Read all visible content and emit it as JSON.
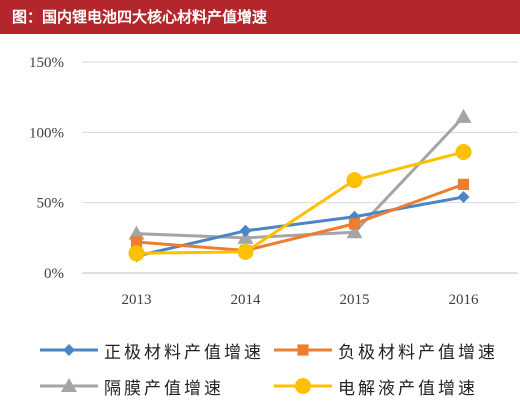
{
  "header": {
    "title": "图：国内锂电池四大核心材料产值增速"
  },
  "chart_data": {
    "type": "line",
    "title": "图：国内锂电池四大核心材料产值增速",
    "categories": [
      "2013",
      "2014",
      "2015",
      "2016"
    ],
    "yticks": [
      "0%",
      "50%",
      "100%",
      "150%"
    ],
    "ylim": [
      0,
      150
    ],
    "grid": true,
    "legend_position": "bottom",
    "series": [
      {
        "name": "正极材料产值增速",
        "values": [
          12,
          30,
          40,
          54
        ],
        "color": "#4a86c6",
        "marker": "diamond"
      },
      {
        "name": "负极材料产值增速",
        "values": [
          22,
          16,
          35,
          63
        ],
        "color": "#ed7d31",
        "marker": "square"
      },
      {
        "name": "隔膜产值增速",
        "values": [
          28,
          25,
          29,
          111
        ],
        "color": "#a5a5a5",
        "marker": "triangle"
      },
      {
        "name": "电解液产值增速",
        "values": [
          14,
          15,
          66,
          86
        ],
        "color": "#ffc000",
        "marker": "circle"
      }
    ]
  }
}
